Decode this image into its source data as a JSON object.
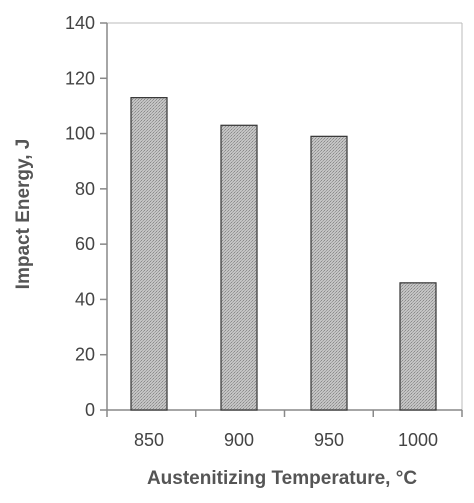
{
  "chart_data": {
    "type": "bar",
    "categories": [
      "850",
      "900",
      "950",
      "1000"
    ],
    "values": [
      113,
      103,
      99,
      46
    ],
    "xlabel": "Austenitizing Temperature, °C",
    "ylabel": "Impact Energy, J",
    "ylim": [
      0,
      140
    ],
    "yticks": [
      "0",
      "20",
      "40",
      "60",
      "80",
      "100",
      "120",
      "140"
    ],
    "grid": false,
    "bar_fill": "#b3b3b3",
    "bar_stroke": "#333333",
    "axis_color": "#888888"
  }
}
